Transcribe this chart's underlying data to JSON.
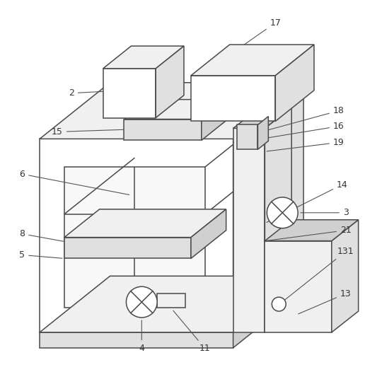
{
  "background_color": "#ffffff",
  "line_color": "#4a4a4a",
  "line_width": 1.1,
  "fig_width": 5.16,
  "fig_height": 5.26,
  "dpi": 100
}
